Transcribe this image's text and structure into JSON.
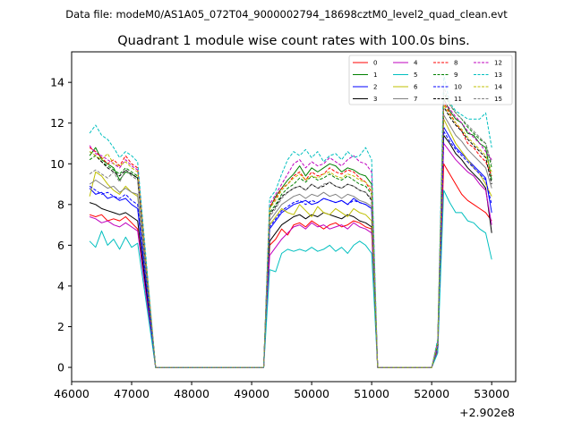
{
  "figure": {
    "suptitle": "Data file: modeM0/AS1A05_072T04_9000002794_18698cztM0_level2_quad_clean.evt"
  },
  "chart_data": {
    "type": "line",
    "title": "Quadrant 1 module wise count rates with 100.0s bins.",
    "xlabel": "",
    "ylabel": "",
    "x_offset_label": "+2.902e8",
    "xlim": [
      46000,
      53400
    ],
    "ylim": [
      -0.7,
      15.5
    ],
    "x_ticks": [
      46000,
      47000,
      48000,
      49000,
      50000,
      51000,
      52000,
      53000
    ],
    "x_tick_labels": [
      "46000",
      "47000",
      "48000",
      "49000",
      "50000",
      "51000",
      "52000",
      "53000"
    ],
    "y_ticks": [
      0,
      2,
      4,
      6,
      8,
      10,
      12,
      14
    ],
    "y_tick_labels": [
      "0",
      "2",
      "4",
      "6",
      "8",
      "10",
      "12",
      "14"
    ],
    "legend_position": "top-right",
    "segments": [
      {
        "start": 46300,
        "n": 9
      },
      {
        "start": 47400,
        "n": 19
      },
      {
        "start": 49300,
        "n": 18
      },
      {
        "start": 51100,
        "n": 10
      },
      {
        "start": 52100,
        "n": 10
      }
    ],
    "series": [
      {
        "name": "0",
        "color": "#ff0000",
        "dash": "solid",
        "values": [
          7.5,
          7.4,
          7.5,
          7.2,
          7.3,
          7.2,
          7.4,
          7.1,
          6.8,
          0,
          0,
          0,
          0,
          0,
          0,
          0,
          0,
          0,
          0,
          0,
          0,
          0,
          0,
          0,
          0,
          0,
          0,
          0,
          6.0,
          6.3,
          6.8,
          6.5,
          7.0,
          7.1,
          6.9,
          7.2,
          7.0,
          6.8,
          7.0,
          7.1,
          6.9,
          7.0,
          7.2,
          7.1,
          6.9,
          6.8,
          0,
          0,
          0,
          0,
          0,
          0,
          0,
          0,
          0,
          0,
          0.8,
          10.0,
          9.5,
          9.0,
          8.5,
          8.2,
          8.0,
          7.8,
          7.6,
          7.2
        ]
      },
      {
        "name": "1",
        "color": "#008000",
        "dash": "solid",
        "values": [
          10.4,
          10.8,
          10.2,
          10.0,
          9.8,
          9.2,
          9.6,
          9.5,
          9.3,
          0,
          0,
          0,
          0,
          0,
          0,
          0,
          0,
          0,
          0,
          0,
          0,
          0,
          0,
          0,
          0,
          0,
          0,
          0,
          7.8,
          8.4,
          8.8,
          9.2,
          9.5,
          9.9,
          9.4,
          9.8,
          9.6,
          9.8,
          10.0,
          9.9,
          9.6,
          9.8,
          9.7,
          9.5,
          9.4,
          9.0,
          0,
          0,
          0,
          0,
          0,
          0,
          0,
          0,
          0,
          0,
          1.2,
          13.2,
          12.6,
          12.2,
          12.0,
          11.5,
          11.4,
          11.0,
          10.8,
          9.2
        ]
      },
      {
        "name": "2",
        "color": "#0000ff",
        "dash": "solid",
        "values": [
          8.8,
          8.5,
          8.6,
          8.3,
          8.4,
          8.2,
          8.3,
          8.0,
          7.8,
          0,
          0,
          0,
          0,
          0,
          0,
          0,
          0,
          0,
          0,
          0,
          0,
          0,
          0,
          0,
          0,
          0,
          0,
          0,
          6.8,
          7.2,
          7.6,
          7.8,
          8.0,
          8.1,
          8.2,
          8.0,
          8.1,
          8.3,
          8.2,
          8.1,
          8.2,
          8.0,
          8.3,
          8.1,
          8.0,
          7.8,
          0,
          0,
          0,
          0,
          0,
          0,
          0,
          0,
          0,
          0,
          1.0,
          11.8,
          11.3,
          10.8,
          10.5,
          10.2,
          9.9,
          9.6,
          9.3,
          7.6
        ]
      },
      {
        "name": "3",
        "color": "#000000",
        "dash": "solid",
        "values": [
          8.1,
          8.0,
          7.8,
          7.7,
          7.6,
          7.5,
          7.6,
          7.4,
          7.2,
          0,
          0,
          0,
          0,
          0,
          0,
          0,
          0,
          0,
          0,
          0,
          0,
          0,
          0,
          0,
          0,
          0,
          0,
          0,
          6.2,
          6.6,
          7.0,
          7.2,
          7.4,
          7.5,
          7.3,
          7.5,
          7.4,
          7.6,
          7.5,
          7.4,
          7.3,
          7.5,
          7.4,
          7.2,
          7.1,
          6.9,
          0,
          0,
          0,
          0,
          0,
          0,
          0,
          0,
          0,
          0,
          1.0,
          11.4,
          11.0,
          10.5,
          10.2,
          9.8,
          9.5,
          9.2,
          8.8,
          6.6
        ]
      },
      {
        "name": "4",
        "color": "#bf00bf",
        "dash": "solid",
        "values": [
          7.4,
          7.3,
          7.1,
          7.2,
          7.0,
          6.9,
          7.1,
          6.9,
          6.7,
          0,
          0,
          0,
          0,
          0,
          0,
          0,
          0,
          0,
          0,
          0,
          0,
          0,
          0,
          0,
          0,
          0,
          0,
          0,
          5.5,
          5.9,
          6.3,
          6.6,
          6.9,
          7.0,
          6.8,
          7.1,
          6.9,
          7.0,
          6.8,
          6.9,
          7.0,
          6.8,
          7.1,
          6.9,
          6.8,
          6.6,
          0,
          0,
          0,
          0,
          0,
          0,
          0,
          0,
          0,
          0,
          0.9,
          11.0,
          10.6,
          10.2,
          9.9,
          9.6,
          9.4,
          9.0,
          8.7,
          7.0
        ]
      },
      {
        "name": "5",
        "color": "#00bfbf",
        "dash": "solid",
        "values": [
          6.2,
          5.9,
          6.7,
          6.0,
          6.3,
          5.8,
          6.4,
          5.9,
          6.1,
          0,
          0,
          0,
          0,
          0,
          0,
          0,
          0,
          0,
          0,
          0,
          0,
          0,
          0,
          0,
          0,
          0,
          0,
          0,
          4.8,
          4.7,
          5.6,
          5.8,
          5.7,
          5.8,
          5.7,
          5.9,
          5.7,
          5.8,
          6.0,
          5.7,
          5.9,
          5.6,
          6.0,
          6.2,
          6.0,
          5.6,
          0,
          0,
          0,
          0,
          0,
          0,
          0,
          0,
          0,
          0,
          0.7,
          8.7,
          8.1,
          7.6,
          7.6,
          7.2,
          7.1,
          6.8,
          6.6,
          5.3
        ]
      },
      {
        "name": "6",
        "color": "#bfbf00",
        "dash": "solid",
        "values": [
          8.4,
          9.6,
          9.4,
          9.0,
          8.7,
          8.5,
          8.9,
          8.6,
          8.4,
          0,
          0,
          0,
          0,
          0,
          0,
          0,
          0,
          0,
          0,
          0,
          0,
          0,
          0,
          0,
          0,
          0,
          0,
          0,
          7.0,
          7.4,
          7.8,
          7.6,
          7.5,
          8.0,
          7.7,
          7.4,
          7.9,
          7.6,
          7.5,
          7.8,
          7.6,
          7.4,
          7.8,
          7.6,
          7.5,
          7.2,
          0,
          0,
          0,
          0,
          0,
          0,
          0,
          0,
          0,
          0,
          1.0,
          12.2,
          11.6,
          11.0,
          10.6,
          10.2,
          9.8,
          9.5,
          9.0,
          8.4
        ]
      },
      {
        "name": "7",
        "color": "#808080",
        "dash": "solid",
        "values": [
          9.0,
          9.2,
          9.0,
          8.8,
          8.9,
          8.6,
          8.8,
          8.6,
          8.5,
          0,
          0,
          0,
          0,
          0,
          0,
          0,
          0,
          0,
          0,
          0,
          0,
          0,
          0,
          0,
          0,
          0,
          0,
          0,
          7.2,
          7.6,
          8.0,
          8.2,
          8.4,
          8.5,
          8.3,
          8.5,
          8.4,
          8.6,
          8.4,
          8.5,
          8.3,
          8.5,
          8.4,
          8.2,
          8.1,
          7.9,
          0,
          0,
          0,
          0,
          0,
          0,
          0,
          0,
          0,
          0,
          1.1,
          12.4,
          11.9,
          11.4,
          11.1,
          10.7,
          10.4,
          10.1,
          9.8,
          8.8
        ]
      },
      {
        "name": "8",
        "color": "#ff0000",
        "dash": "dashed",
        "values": [
          10.8,
          10.6,
          10.3,
          10.0,
          10.2,
          9.9,
          10.4,
          10.0,
          9.8,
          0,
          0,
          0,
          0,
          0,
          0,
          0,
          0,
          0,
          0,
          0,
          0,
          0,
          0,
          0,
          0,
          0,
          0,
          0,
          7.9,
          8.3,
          8.8,
          9.0,
          9.4,
          9.6,
          9.2,
          9.6,
          9.4,
          9.5,
          9.8,
          9.6,
          9.5,
          9.7,
          9.6,
          9.3,
          9.1,
          8.6,
          0,
          0,
          0,
          0,
          0,
          0,
          0,
          0,
          0,
          0,
          1.2,
          13.0,
          12.5,
          12.0,
          11.6,
          11.0,
          10.8,
          10.4,
          10.1,
          9.4
        ]
      },
      {
        "name": "9",
        "color": "#008000",
        "dash": "dashed",
        "values": [
          10.2,
          10.4,
          10.1,
          9.9,
          9.7,
          9.5,
          9.8,
          9.6,
          9.4,
          0,
          0,
          0,
          0,
          0,
          0,
          0,
          0,
          0,
          0,
          0,
          0,
          0,
          0,
          0,
          0,
          0,
          0,
          0,
          7.6,
          8.0,
          8.5,
          8.8,
          9.0,
          9.3,
          9.1,
          9.4,
          9.2,
          9.3,
          9.5,
          9.3,
          9.2,
          9.4,
          9.2,
          9.0,
          8.9,
          8.5,
          0,
          0,
          0,
          0,
          0,
          0,
          0,
          0,
          0,
          0,
          1.2,
          13.5,
          12.9,
          12.5,
          12.2,
          11.8,
          11.5,
          11.2,
          11.0,
          9.8
        ]
      },
      {
        "name": "10",
        "color": "#0000ff",
        "dash": "dashed",
        "values": [
          8.9,
          8.7,
          8.5,
          8.6,
          8.4,
          8.3,
          8.5,
          8.2,
          8.0,
          0,
          0,
          0,
          0,
          0,
          0,
          0,
          0,
          0,
          0,
          0,
          0,
          0,
          0,
          0,
          0,
          0,
          0,
          0,
          6.9,
          7.3,
          7.7,
          7.9,
          8.1,
          8.2,
          8.0,
          8.2,
          8.1,
          8.3,
          8.2,
          8.1,
          8.2,
          8.0,
          8.2,
          8.1,
          8.0,
          7.8,
          0,
          0,
          0,
          0,
          0,
          0,
          0,
          0,
          0,
          0,
          1.0,
          11.6,
          11.1,
          10.7,
          10.4,
          10.1,
          9.8,
          9.5,
          9.2,
          8.0
        ]
      },
      {
        "name": "11",
        "color": "#000000",
        "dash": "dashed",
        "values": [
          10.6,
          10.4,
          10.1,
          9.8,
          9.6,
          9.4,
          9.7,
          9.5,
          9.3,
          0,
          0,
          0,
          0,
          0,
          0,
          0,
          0,
          0,
          0,
          0,
          0,
          0,
          0,
          0,
          0,
          0,
          0,
          0,
          7.5,
          7.9,
          8.4,
          8.6,
          8.8,
          8.9,
          8.7,
          9.0,
          8.8,
          8.9,
          9.1,
          8.9,
          8.8,
          9.0,
          8.9,
          8.7,
          8.6,
          8.2,
          0,
          0,
          0,
          0,
          0,
          0,
          0,
          0,
          0,
          0,
          1.1,
          12.8,
          12.3,
          11.9,
          11.6,
          11.2,
          10.9,
          10.6,
          10.3,
          9.0
        ]
      },
      {
        "name": "12",
        "color": "#bf00bf",
        "dash": "dashed",
        "values": [
          10.9,
          10.5,
          10.4,
          10.2,
          10.0,
          9.8,
          10.2,
          9.9,
          9.7,
          0,
          0,
          0,
          0,
          0,
          0,
          0,
          0,
          0,
          0,
          0,
          0,
          0,
          0,
          0,
          0,
          0,
          0,
          0,
          8.0,
          8.5,
          9.0,
          9.5,
          10.0,
          10.2,
          9.8,
          10.1,
          9.9,
          10.0,
          10.3,
          10.1,
          9.9,
          10.2,
          10.4,
          10.1,
          10.0,
          9.6,
          0,
          0,
          0,
          0,
          0,
          0,
          0,
          0,
          0,
          0,
          1.3,
          13.1,
          12.7,
          12.3,
          12.0,
          11.6,
          11.3,
          11.0,
          10.6,
          10.2
        ]
      },
      {
        "name": "13",
        "color": "#00bfbf",
        "dash": "dashed",
        "values": [
          11.5,
          11.9,
          11.4,
          11.2,
          10.8,
          10.3,
          10.6,
          10.4,
          10.1,
          0,
          0,
          0,
          0,
          0,
          0,
          0,
          0,
          0,
          0,
          0,
          0,
          0,
          0,
          0,
          0,
          0,
          0,
          0,
          8.3,
          8.7,
          9.5,
          10.2,
          10.6,
          10.4,
          10.7,
          10.3,
          10.6,
          10.1,
          10.4,
          10.5,
          10.2,
          10.6,
          10.3,
          10.4,
          10.8,
          10.2,
          0,
          0,
          0,
          0,
          0,
          0,
          0,
          0,
          0,
          0,
          1.4,
          14.4,
          13.0,
          12.6,
          12.4,
          12.2,
          12.2,
          12.2,
          12.5,
          10.8
        ]
      },
      {
        "name": "14",
        "color": "#bfbf00",
        "dash": "dashed",
        "values": [
          10.6,
          10.4,
          10.2,
          10.5,
          10.0,
          9.9,
          10.1,
          9.8,
          9.6,
          0,
          0,
          0,
          0,
          0,
          0,
          0,
          0,
          0,
          0,
          0,
          0,
          0,
          0,
          0,
          0,
          0,
          0,
          0,
          7.8,
          8.2,
          8.7,
          9.0,
          9.3,
          9.5,
          9.2,
          9.4,
          9.3,
          9.5,
          9.6,
          9.4,
          9.3,
          9.5,
          9.4,
          9.2,
          9.1,
          8.8,
          0,
          0,
          0,
          0,
          0,
          0,
          0,
          0,
          0,
          0,
          1.2,
          12.9,
          12.4,
          12.0,
          11.7,
          11.3,
          11.0,
          10.7,
          10.4,
          9.6
        ]
      },
      {
        "name": "15",
        "color": "#808080",
        "dash": "dashed",
        "values": [
          9.5,
          9.7,
          9.5,
          9.3,
          9.6,
          9.1,
          9.7,
          9.4,
          9.2,
          0,
          0,
          0,
          0,
          0,
          0,
          0,
          0,
          0,
          0,
          0,
          0,
          0,
          0,
          0,
          0,
          0,
          0,
          0,
          7.4,
          7.8,
          8.3,
          8.6,
          8.8,
          8.9,
          8.7,
          9.0,
          8.8,
          9.0,
          9.1,
          8.9,
          8.8,
          9.0,
          8.9,
          8.7,
          8.6,
          8.3,
          0,
          0,
          0,
          0,
          0,
          0,
          0,
          0,
          0,
          0,
          1.1,
          13.8,
          12.9,
          12.5,
          12.2,
          11.9,
          11.6,
          11.3,
          11.0,
          10.0
        ]
      }
    ]
  }
}
